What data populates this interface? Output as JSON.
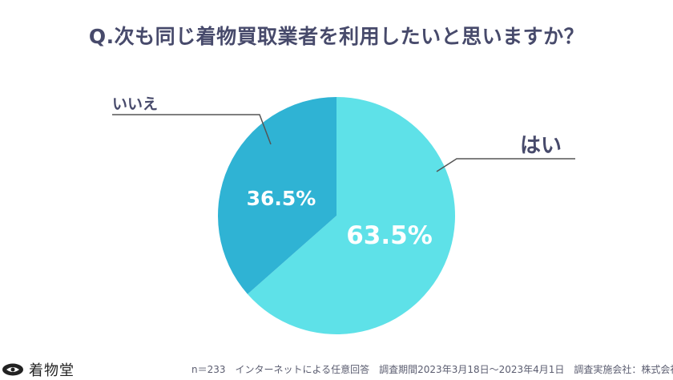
{
  "title": "Q.次も同じ着物買取業者を利用したいと思いますか？",
  "chart_data": {
    "type": "pie",
    "slices": [
      {
        "label": "はい",
        "value": 63.5,
        "display": "63.5%",
        "color": "#5ee1e8"
      },
      {
        "label": "いいえ",
        "value": 36.5,
        "display": "36.5%",
        "color": "#2fb3d4"
      }
    ]
  },
  "footer": {
    "note": "n＝233　インターネットによる任意回答　調査期間2023年3月18日〜2023年4月1日　調査実施会社：株式会社LIFE"
  },
  "logo": {
    "text": "着物堂",
    "icon": "kimono-logo-icon"
  },
  "colors": {
    "title": "#474a6b",
    "leader": "#555555",
    "label_value": "#ffffff"
  }
}
